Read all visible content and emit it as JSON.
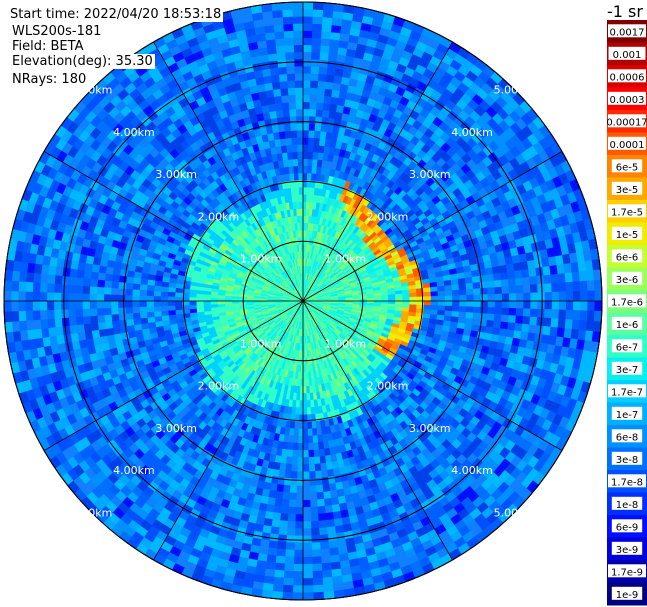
{
  "info": {
    "start_time": "Start time: 2022/04/20 18:53:18",
    "instrument": "WLS200s-181",
    "field": "Field: BETA",
    "elevation": "Elevation(deg): 35.30",
    "nrays": "NRays: 180"
  },
  "colorbar": {
    "unit": "-1 sr",
    "ticks": [
      "0.0017",
      "0.001",
      "0.0006",
      "0.0003",
      "0.00017",
      "0.0001",
      "6e-5",
      "3e-5",
      "1.7e-5",
      "1e-5",
      "6e-6",
      "3e-6",
      "1.7e-6",
      "1e-6",
      "6e-7",
      "3e-7",
      "1.7e-7",
      "1e-7",
      "6e-8",
      "3e-8",
      "1.7e-8",
      "1e-8",
      "6e-9",
      "3e-9",
      "1.7e-9",
      "1e-9"
    ],
    "colors": [
      "#800000",
      "#b00000",
      "#d80000",
      "#ff0000",
      "#ff2a00",
      "#ff5a00",
      "#ff8400",
      "#ffa800",
      "#ffd000",
      "#f0ec00",
      "#c4ff32",
      "#9cff5a",
      "#7cff7a",
      "#5affa0",
      "#30ffc8",
      "#08f0ee",
      "#00d0ff",
      "#00b0ff",
      "#0090ff",
      "#0070ff",
      "#0050ff",
      "#0030ff",
      "#0010ff",
      "#0000dc",
      "#0000b0",
      "#000080"
    ]
  },
  "chart_data": {
    "type": "heatmap",
    "projection": "polar PPI",
    "field": "BETA",
    "units": "-1 sr",
    "range_rings_km": [
      1,
      2,
      3,
      4,
      5
    ],
    "ring_labels": [
      "1.00km",
      "2.00km",
      "3.00km",
      "4.00km",
      "5.00km"
    ],
    "azimuth_spokes_deg": [
      0,
      30,
      60,
      90,
      120,
      150,
      180,
      210,
      240,
      270,
      300,
      330
    ],
    "max_range_km": 5.0,
    "near_field": {
      "range_km": [
        0,
        2.0
      ],
      "typical_value": "1e-6 to 1.7e-6"
    },
    "edge_band": {
      "range_km": [
        1.5,
        2.1
      ],
      "azimuth_deg": [
        20,
        120
      ],
      "peak_value": "1e-5 to 3e-5"
    },
    "far_field": {
      "range_km": [
        2.0,
        5.0
      ],
      "typical_value": "3e-8 to 1e-7"
    }
  }
}
